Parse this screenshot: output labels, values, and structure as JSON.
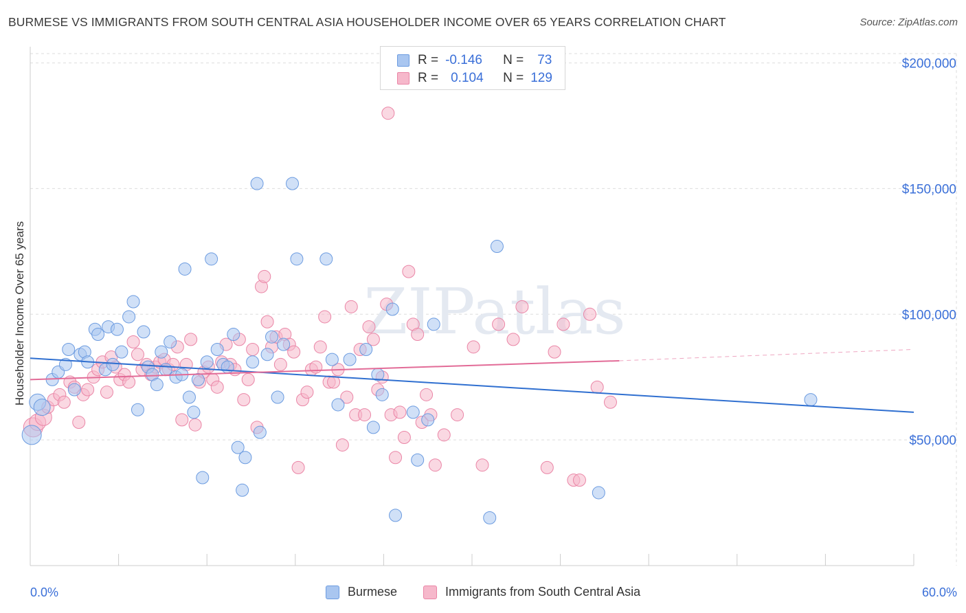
{
  "title": "BURMESE VS IMMIGRANTS FROM SOUTH CENTRAL ASIA HOUSEHOLDER INCOME OVER 65 YEARS CORRELATION CHART",
  "source": "Source: ZipAtlas.com",
  "watermark": "ZIPatlas",
  "colors": {
    "blue_fill": "#a9c6f0",
    "blue_stroke": "#6b9be0",
    "blue_line": "#2f6fd0",
    "pink_fill": "#f6b8cb",
    "pink_stroke": "#ea85a6",
    "pink_line": "#e26b97",
    "axis_text": "#3a6fd8",
    "grid": "#dddddd"
  },
  "legend": {
    "rows": [
      {
        "r_label": "R =",
        "r_value": "-0.146",
        "n_label": "N =",
        "n_value": "73"
      },
      {
        "r_label": "R =",
        "r_value": "0.104",
        "n_label": "N =",
        "n_value": "129"
      }
    ]
  },
  "bottom_legend": {
    "series1": "Burmese",
    "series2": "Immigrants from South Central Asia"
  },
  "x_axis": {
    "min_label": "0.0%",
    "max_label": "60.0%"
  },
  "chart_data": {
    "type": "scatter",
    "xlabel": "",
    "ylabel": "Householder Income Over 65 years",
    "xlim": [
      0,
      60
    ],
    "ylim": [
      0,
      210000
    ],
    "y_ticks": [
      {
        "value": 50000,
        "label": "$50,000"
      },
      {
        "value": 100000,
        "label": "$100,000"
      },
      {
        "value": 150000,
        "label": "$150,000"
      },
      {
        "value": 200000,
        "label": "$200,000"
      }
    ],
    "grid": true,
    "legend_position": "top-center",
    "series": [
      {
        "name": "Burmese",
        "color": "#a9c6f0",
        "trend": {
          "x": [
            0,
            60
          ],
          "y": [
            82500,
            61000
          ]
        },
        "points": [
          [
            0.1,
            52000
          ],
          [
            0.5,
            65000
          ],
          [
            0.8,
            63000
          ],
          [
            1.5,
            74000
          ],
          [
            1.9,
            77000
          ],
          [
            2.4,
            80000
          ],
          [
            2.6,
            86000
          ],
          [
            3.0,
            70000
          ],
          [
            3.4,
            84000
          ],
          [
            3.7,
            85000
          ],
          [
            3.9,
            81000
          ],
          [
            4.4,
            94000
          ],
          [
            4.6,
            92000
          ],
          [
            5.1,
            78000
          ],
          [
            5.3,
            95000
          ],
          [
            5.6,
            80000
          ],
          [
            5.9,
            94000
          ],
          [
            6.2,
            85000
          ],
          [
            6.7,
            99000
          ],
          [
            7.0,
            105000
          ],
          [
            7.3,
            62000
          ],
          [
            7.7,
            93000
          ],
          [
            8.0,
            79000
          ],
          [
            8.3,
            76000
          ],
          [
            8.6,
            72000
          ],
          [
            8.9,
            85000
          ],
          [
            9.2,
            78000
          ],
          [
            9.5,
            89000
          ],
          [
            9.9,
            75000
          ],
          [
            10.3,
            76000
          ],
          [
            10.5,
            118000
          ],
          [
            10.8,
            67000
          ],
          [
            11.1,
            61000
          ],
          [
            11.4,
            74000
          ],
          [
            11.7,
            35000
          ],
          [
            12.0,
            81000
          ],
          [
            12.3,
            122000
          ],
          [
            12.7,
            86000
          ],
          [
            13.1,
            80000
          ],
          [
            13.4,
            79000
          ],
          [
            13.8,
            92000
          ],
          [
            14.1,
            47000
          ],
          [
            14.4,
            30000
          ],
          [
            14.6,
            43000
          ],
          [
            15.1,
            81000
          ],
          [
            15.4,
            152000
          ],
          [
            15.6,
            53000
          ],
          [
            16.1,
            84000
          ],
          [
            16.4,
            91000
          ],
          [
            16.8,
            67000
          ],
          [
            17.2,
            88000
          ],
          [
            17.8,
            152000
          ],
          [
            18.1,
            122000
          ],
          [
            20.1,
            122000
          ],
          [
            20.5,
            82000
          ],
          [
            20.9,
            64000
          ],
          [
            21.7,
            82000
          ],
          [
            22.8,
            86000
          ],
          [
            23.3,
            55000
          ],
          [
            23.6,
            76000
          ],
          [
            23.9,
            68000
          ],
          [
            24.6,
            102000
          ],
          [
            24.8,
            20000
          ],
          [
            26.0,
            61000
          ],
          [
            26.3,
            42000
          ],
          [
            27.0,
            58000
          ],
          [
            27.4,
            96000
          ],
          [
            31.2,
            19000
          ],
          [
            31.7,
            127000
          ],
          [
            38.6,
            29000
          ],
          [
            53.0,
            66000
          ]
        ]
      },
      {
        "name": "Immigrants from South Central Asia",
        "color": "#f6b8cb",
        "trend": {
          "x": [
            0,
            40
          ],
          "y": [
            74000,
            81500
          ]
        },
        "trend_dashed": {
          "x": [
            40,
            60
          ],
          "y": [
            81500,
            86000
          ]
        },
        "points": [
          [
            0.2,
            55000
          ],
          [
            0.5,
            57000
          ],
          [
            0.9,
            59000
          ],
          [
            1.2,
            63000
          ],
          [
            1.6,
            66000
          ],
          [
            2.0,
            68000
          ],
          [
            2.3,
            65000
          ],
          [
            2.7,
            73000
          ],
          [
            3.0,
            71000
          ],
          [
            3.3,
            57000
          ],
          [
            3.6,
            68000
          ],
          [
            3.9,
            70000
          ],
          [
            4.3,
            75000
          ],
          [
            4.6,
            78000
          ],
          [
            4.9,
            81000
          ],
          [
            5.2,
            69000
          ],
          [
            5.5,
            83000
          ],
          [
            5.8,
            79000
          ],
          [
            6.1,
            74000
          ],
          [
            6.4,
            76000
          ],
          [
            6.7,
            73000
          ],
          [
            7.0,
            89000
          ],
          [
            7.3,
            84000
          ],
          [
            7.6,
            78000
          ],
          [
            7.9,
            80000
          ],
          [
            8.2,
            76000
          ],
          [
            8.5,
            79000
          ],
          [
            8.8,
            81000
          ],
          [
            9.1,
            82000
          ],
          [
            9.4,
            78000
          ],
          [
            9.7,
            80000
          ],
          [
            10.0,
            87000
          ],
          [
            10.3,
            58000
          ],
          [
            10.6,
            80000
          ],
          [
            10.9,
            90000
          ],
          [
            11.2,
            56000
          ],
          [
            11.5,
            73000
          ],
          [
            11.8,
            77000
          ],
          [
            12.1,
            79000
          ],
          [
            12.4,
            74000
          ],
          [
            12.7,
            71000
          ],
          [
            13.0,
            81000
          ],
          [
            13.3,
            88000
          ],
          [
            13.6,
            80000
          ],
          [
            13.9,
            78000
          ],
          [
            14.2,
            90000
          ],
          [
            14.5,
            66000
          ],
          [
            14.8,
            74000
          ],
          [
            15.1,
            86000
          ],
          [
            15.4,
            55000
          ],
          [
            15.7,
            111000
          ],
          [
            15.9,
            115000
          ],
          [
            16.1,
            97000
          ],
          [
            16.4,
            87000
          ],
          [
            16.7,
            91000
          ],
          [
            17.0,
            80000
          ],
          [
            17.3,
            92000
          ],
          [
            17.6,
            88000
          ],
          [
            17.9,
            85000
          ],
          [
            18.2,
            39000
          ],
          [
            18.5,
            66000
          ],
          [
            18.8,
            69000
          ],
          [
            19.1,
            78000
          ],
          [
            19.4,
            79000
          ],
          [
            19.7,
            87000
          ],
          [
            20.0,
            99000
          ],
          [
            20.3,
            73000
          ],
          [
            20.6,
            73000
          ],
          [
            20.9,
            78000
          ],
          [
            21.2,
            48000
          ],
          [
            21.5,
            67000
          ],
          [
            21.8,
            103000
          ],
          [
            22.1,
            60000
          ],
          [
            22.4,
            86000
          ],
          [
            22.7,
            60000
          ],
          [
            23.0,
            95000
          ],
          [
            23.3,
            90000
          ],
          [
            23.6,
            70000
          ],
          [
            23.9,
            75000
          ],
          [
            24.2,
            104000
          ],
          [
            24.5,
            60000
          ],
          [
            24.8,
            43000
          ],
          [
            25.1,
            61000
          ],
          [
            25.4,
            51000
          ],
          [
            25.7,
            117000
          ],
          [
            26.0,
            96000
          ],
          [
            26.3,
            92000
          ],
          [
            26.6,
            57000
          ],
          [
            26.9,
            68000
          ],
          [
            27.2,
            60000
          ],
          [
            27.5,
            40000
          ],
          [
            28.1,
            52000
          ],
          [
            29.0,
            60000
          ],
          [
            30.1,
            87000
          ],
          [
            30.7,
            40000
          ],
          [
            31.8,
            96000
          ],
          [
            32.8,
            90000
          ],
          [
            33.4,
            103000
          ],
          [
            35.1,
            39000
          ],
          [
            35.6,
            85000
          ],
          [
            36.2,
            96000
          ],
          [
            36.9,
            34000
          ],
          [
            37.3,
            34000
          ],
          [
            38.0,
            100000
          ],
          [
            38.5,
            71000
          ],
          [
            39.4,
            65000
          ],
          [
            24.3,
            180000
          ]
        ]
      }
    ]
  }
}
